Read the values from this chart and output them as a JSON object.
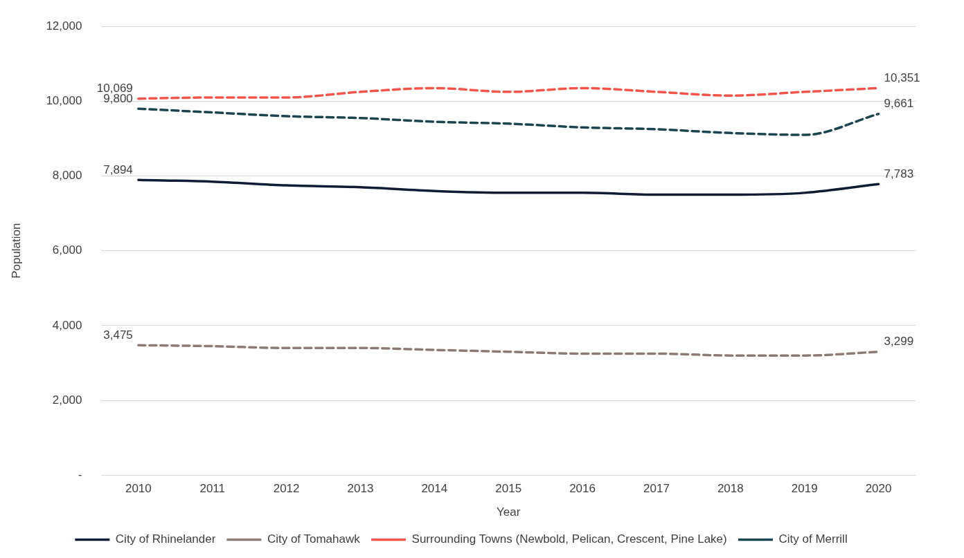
{
  "chart_data": {
    "type": "line",
    "xlabel": "Year",
    "ylabel": "Population",
    "categories": [
      "2010",
      "2011",
      "2012",
      "2013",
      "2014",
      "2015",
      "2016",
      "2017",
      "2018",
      "2019",
      "2020"
    ],
    "ylim": [
      0,
      12000
    ],
    "yticks": [
      {
        "value": 0,
        "label": "-"
      },
      {
        "value": 2000,
        "label": "2,000"
      },
      {
        "value": 4000,
        "label": "4,000"
      },
      {
        "value": 6000,
        "label": "6,000"
      },
      {
        "value": 8000,
        "label": "8,000"
      },
      {
        "value": 10000,
        "label": "10,000"
      },
      {
        "value": 12000,
        "label": "12,000"
      }
    ],
    "grid": "y",
    "legend": "bottom",
    "marker": "none",
    "series": [
      {
        "name": "City of Rhinelander",
        "color": "#0f1c33",
        "line_style": "solid",
        "values": [
          7894,
          7850,
          7750,
          7700,
          7600,
          7550,
          7550,
          7500,
          7500,
          7550,
          7783
        ],
        "value_labels": [
          "7,894",
          null,
          null,
          null,
          null,
          null,
          null,
          null,
          null,
          null,
          "7,783"
        ]
      },
      {
        "name": "City of Tomahawk",
        "color": "#8c7b72",
        "line_style": "dashed",
        "values": [
          3475,
          3450,
          3400,
          3400,
          3350,
          3300,
          3250,
          3250,
          3200,
          3200,
          3299
        ],
        "value_labels": [
          "3,475",
          null,
          null,
          null,
          null,
          null,
          null,
          null,
          null,
          null,
          "3,299"
        ]
      },
      {
        "name": "Surrounding Towns (Newbold, Pelican, Crescent, Pine Lake)",
        "color": "#f4554a",
        "line_style": "dashed",
        "values": [
          10069,
          10100,
          10100,
          10250,
          10350,
          10250,
          10350,
          10250,
          10150,
          10250,
          10351
        ],
        "value_labels": [
          "10,069",
          null,
          null,
          null,
          null,
          null,
          null,
          null,
          null,
          null,
          "10,351"
        ]
      },
      {
        "name": "City of Merrill",
        "color": "#1a4550",
        "line_style": "dashed",
        "values": [
          9800,
          9700,
          9600,
          9550,
          9450,
          9400,
          9300,
          9250,
          9150,
          9100,
          9661
        ],
        "value_labels": [
          "9,800",
          null,
          null,
          null,
          null,
          null,
          null,
          null,
          null,
          null,
          "9,661"
        ]
      }
    ]
  }
}
